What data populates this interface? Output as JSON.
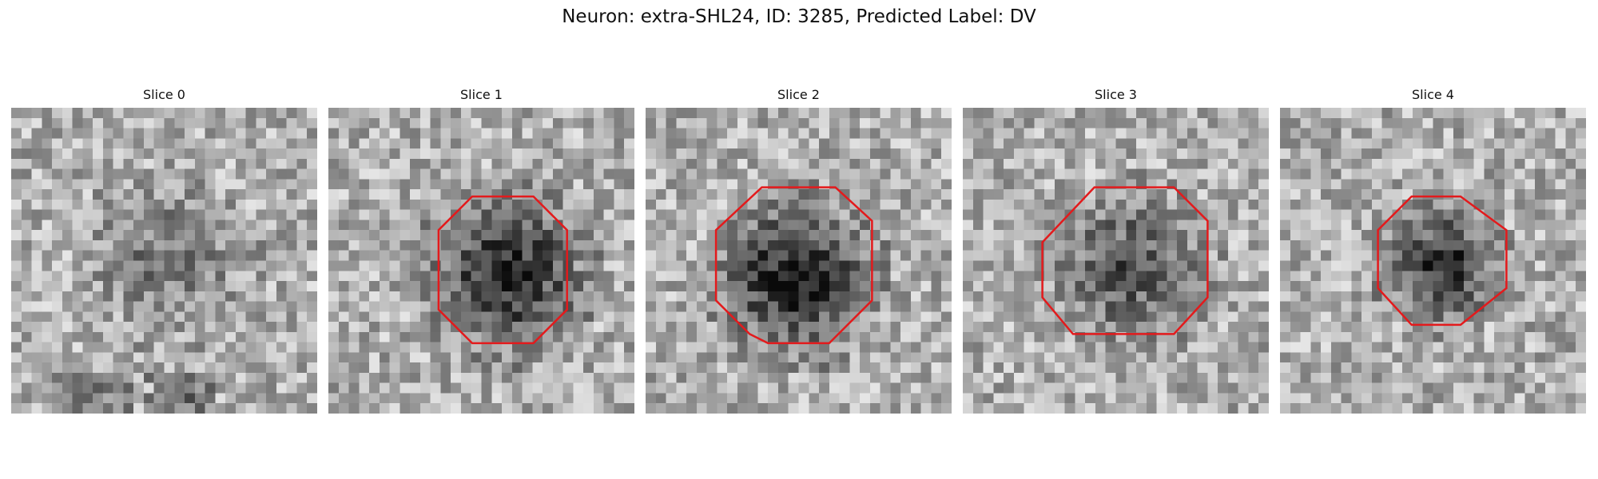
{
  "figure": {
    "title": "Neuron: extra-SHL24, ID: 3285, Predicted Label: DV"
  },
  "contour_color": "#e31a1c",
  "panels": [
    {
      "label": "Slice 0",
      "seed": 11,
      "blob": 0.35,
      "contour": []
    },
    {
      "label": "Slice 1",
      "seed": 23,
      "blob": 0.85,
      "contour": [
        [
          0.47,
          0.29
        ],
        [
          0.67,
          0.29
        ],
        [
          0.78,
          0.4
        ],
        [
          0.78,
          0.66
        ],
        [
          0.67,
          0.77
        ],
        [
          0.47,
          0.77
        ],
        [
          0.36,
          0.66
        ],
        [
          0.36,
          0.4
        ]
      ]
    },
    {
      "label": "Slice 2",
      "seed": 37,
      "blob": 0.9,
      "contour": [
        [
          0.38,
          0.26
        ],
        [
          0.62,
          0.26
        ],
        [
          0.74,
          0.37
        ],
        [
          0.74,
          0.63
        ],
        [
          0.6,
          0.77
        ],
        [
          0.4,
          0.77
        ],
        [
          0.34,
          0.74
        ],
        [
          0.23,
          0.63
        ],
        [
          0.23,
          0.4
        ]
      ]
    },
    {
      "label": "Slice 3",
      "seed": 53,
      "blob": 0.55,
      "contour": [
        [
          0.43,
          0.26
        ],
        [
          0.69,
          0.26
        ],
        [
          0.8,
          0.37
        ],
        [
          0.8,
          0.62
        ],
        [
          0.69,
          0.74
        ],
        [
          0.36,
          0.74
        ],
        [
          0.26,
          0.62
        ],
        [
          0.26,
          0.44
        ]
      ]
    },
    {
      "label": "Slice 4",
      "seed": 71,
      "blob": 0.8,
      "contour": [
        [
          0.43,
          0.29
        ],
        [
          0.59,
          0.29
        ],
        [
          0.74,
          0.4
        ],
        [
          0.74,
          0.59
        ],
        [
          0.59,
          0.71
        ],
        [
          0.43,
          0.71
        ],
        [
          0.32,
          0.59
        ],
        [
          0.32,
          0.4
        ]
      ]
    }
  ]
}
